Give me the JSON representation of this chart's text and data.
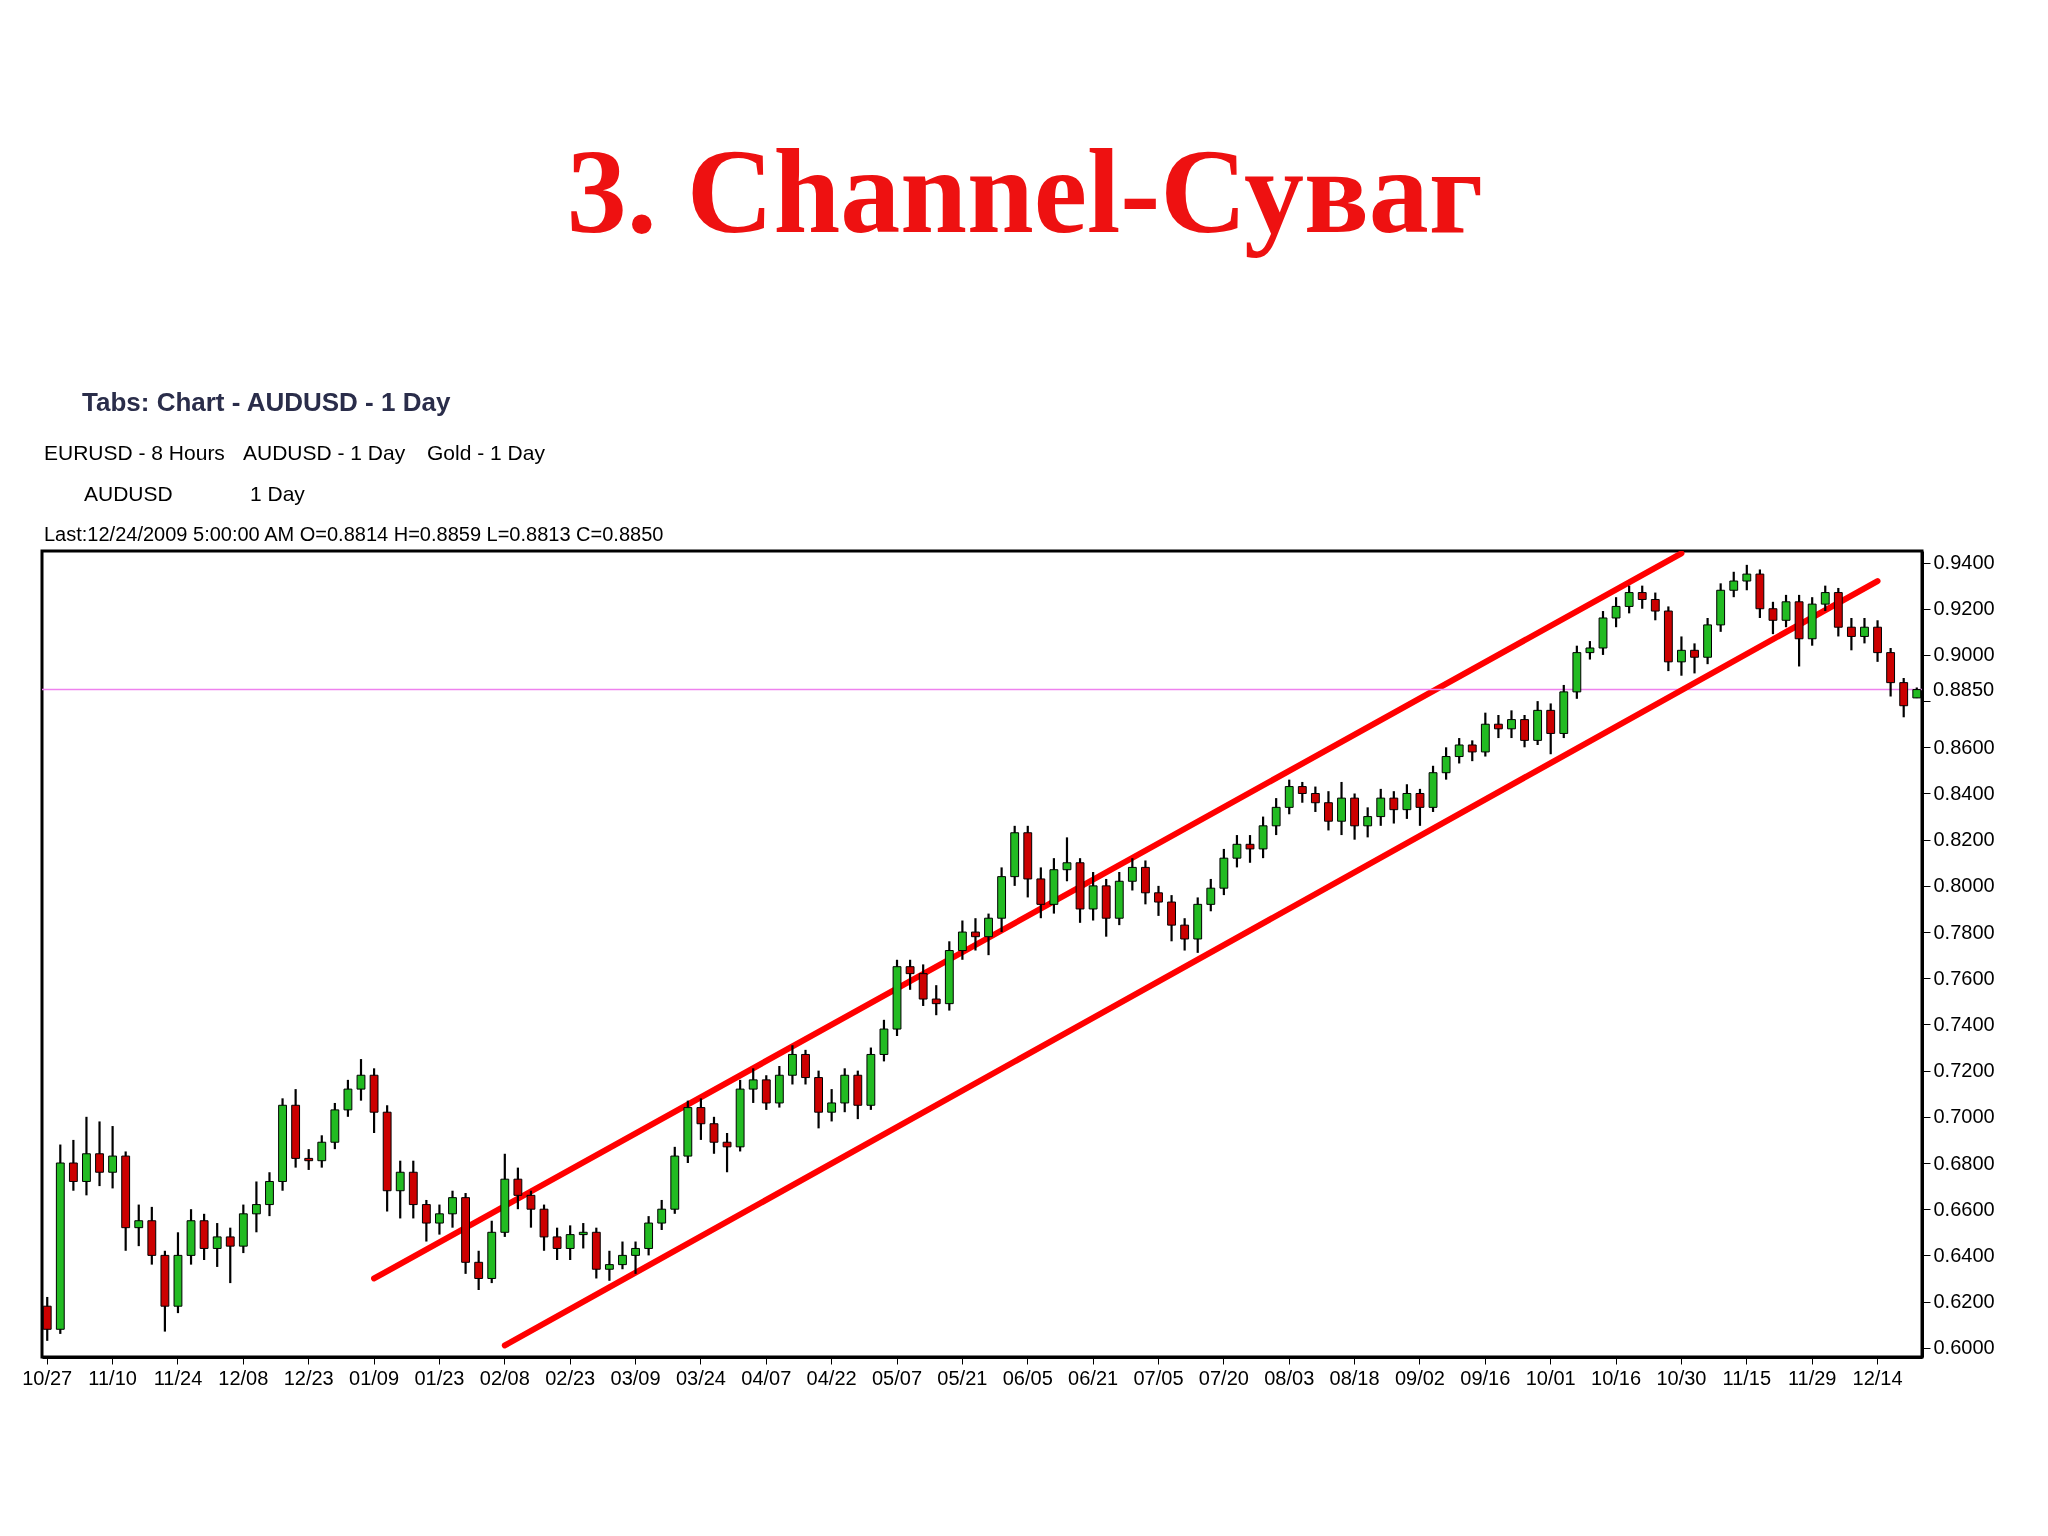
{
  "chart_data": {
    "type": "candlestick",
    "title": "3. Channel-Суваг",
    "subtitle": "Tabs: Chart - AUDUSD - 1 Day",
    "annotations": [
      "EURUSD - 8 Hours",
      "AUDUSD - 1 Day",
      "Gold - 1 Day",
      "AUDUSD",
      "1 Day",
      "Last:12/24/2009 5:00:00 AM O=0.8814 H=0.8859 L=0.8813 C=0.8850"
    ],
    "categories": [
      "10/27",
      null,
      null,
      null,
      null,
      "11/10",
      null,
      null,
      null,
      null,
      "11/24",
      null,
      null,
      null,
      null,
      "12/08",
      null,
      null,
      null,
      null,
      "12/23",
      null,
      null,
      null,
      null,
      "01/09",
      null,
      null,
      null,
      null,
      "01/23",
      null,
      null,
      null,
      null,
      "02/08",
      null,
      null,
      null,
      null,
      "02/23",
      null,
      null,
      null,
      null,
      "03/09",
      null,
      null,
      null,
      null,
      "03/24",
      null,
      null,
      null,
      null,
      "04/07",
      null,
      null,
      null,
      null,
      "04/22",
      null,
      null,
      null,
      null,
      "05/07",
      null,
      null,
      null,
      null,
      "05/21",
      null,
      null,
      null,
      null,
      "06/05",
      null,
      null,
      null,
      null,
      "06/21",
      null,
      null,
      null,
      null,
      "07/05",
      null,
      null,
      null,
      null,
      "07/20",
      null,
      null,
      null,
      null,
      "08/03",
      null,
      null,
      null,
      null,
      "08/18",
      null,
      null,
      null,
      null,
      "09/02",
      null,
      null,
      null,
      null,
      "09/16",
      null,
      null,
      null,
      null,
      "10/01",
      null,
      null,
      null,
      null,
      "10/16",
      null,
      null,
      null,
      null,
      "10/30",
      null,
      null,
      null,
      null,
      "11/15",
      null,
      null,
      null,
      null,
      "11/29",
      null,
      null,
      null,
      null,
      "12/14",
      null,
      null,
      null
    ],
    "ohlc": [
      [
        0.618,
        0.622,
        0.603,
        0.608
      ],
      [
        0.608,
        0.688,
        0.606,
        0.68
      ],
      [
        0.68,
        0.69,
        0.668,
        0.672
      ],
      [
        0.672,
        0.7,
        0.666,
        0.684
      ],
      [
        0.684,
        0.698,
        0.67,
        0.676
      ],
      [
        0.676,
        0.696,
        0.669,
        0.683
      ],
      [
        0.683,
        0.685,
        0.642,
        0.652
      ],
      [
        0.652,
        0.662,
        0.644,
        0.655
      ],
      [
        0.655,
        0.661,
        0.636,
        0.64
      ],
      [
        0.64,
        0.642,
        0.607,
        0.618
      ],
      [
        0.618,
        0.65,
        0.615,
        0.64
      ],
      [
        0.64,
        0.66,
        0.636,
        0.655
      ],
      [
        0.655,
        0.658,
        0.638,
        0.643
      ],
      [
        0.643,
        0.654,
        0.635,
        0.648
      ],
      [
        0.648,
        0.652,
        0.628,
        0.644
      ],
      [
        0.644,
        0.662,
        0.641,
        0.658
      ],
      [
        0.658,
        0.672,
        0.65,
        0.662
      ],
      [
        0.662,
        0.676,
        0.657,
        0.672
      ],
      [
        0.672,
        0.708,
        0.668,
        0.705
      ],
      [
        0.705,
        0.712,
        0.678,
        0.682
      ],
      [
        0.682,
        0.686,
        0.677,
        0.681
      ],
      [
        0.681,
        0.692,
        0.678,
        0.689
      ],
      [
        0.689,
        0.706,
        0.686,
        0.703
      ],
      [
        0.703,
        0.716,
        0.7,
        0.712
      ],
      [
        0.712,
        0.725,
        0.707,
        0.718
      ],
      [
        0.718,
        0.721,
        0.693,
        0.702
      ],
      [
        0.702,
        0.705,
        0.659,
        0.668
      ],
      [
        0.668,
        0.681,
        0.656,
        0.676
      ],
      [
        0.676,
        0.681,
        0.656,
        0.662
      ],
      [
        0.662,
        0.664,
        0.646,
        0.654
      ],
      [
        0.654,
        0.662,
        0.649,
        0.658
      ],
      [
        0.658,
        0.668,
        0.652,
        0.665
      ],
      [
        0.665,
        0.667,
        0.632,
        0.637
      ],
      [
        0.637,
        0.642,
        0.625,
        0.63
      ],
      [
        0.63,
        0.655,
        0.628,
        0.65
      ],
      [
        0.65,
        0.684,
        0.648,
        0.673
      ],
      [
        0.673,
        0.678,
        0.66,
        0.666
      ],
      [
        0.666,
        0.668,
        0.652,
        0.66
      ],
      [
        0.66,
        0.662,
        0.642,
        0.648
      ],
      [
        0.648,
        0.652,
        0.638,
        0.643
      ],
      [
        0.643,
        0.653,
        0.638,
        0.649
      ],
      [
        0.649,
        0.654,
        0.643,
        0.65
      ],
      [
        0.65,
        0.652,
        0.63,
        0.634
      ],
      [
        0.634,
        0.642,
        0.629,
        0.636
      ],
      [
        0.636,
        0.646,
        0.634,
        0.64
      ],
      [
        0.64,
        0.646,
        0.632,
        0.643
      ],
      [
        0.643,
        0.657,
        0.64,
        0.654
      ],
      [
        0.654,
        0.664,
        0.651,
        0.66
      ],
      [
        0.66,
        0.687,
        0.658,
        0.683
      ],
      [
        0.683,
        0.707,
        0.68,
        0.704
      ],
      [
        0.704,
        0.708,
        0.69,
        0.697
      ],
      [
        0.697,
        0.7,
        0.684,
        0.689
      ],
      [
        0.689,
        0.693,
        0.676,
        0.687
      ],
      [
        0.687,
        0.716,
        0.685,
        0.712
      ],
      [
        0.712,
        0.721,
        0.706,
        0.716
      ],
      [
        0.716,
        0.718,
        0.703,
        0.706
      ],
      [
        0.706,
        0.722,
        0.704,
        0.718
      ],
      [
        0.718,
        0.731,
        0.714,
        0.727
      ],
      [
        0.727,
        0.729,
        0.714,
        0.717
      ],
      [
        0.717,
        0.72,
        0.695,
        0.702
      ],
      [
        0.702,
        0.712,
        0.698,
        0.706
      ],
      [
        0.706,
        0.721,
        0.702,
        0.718
      ],
      [
        0.718,
        0.72,
        0.699,
        0.705
      ],
      [
        0.705,
        0.73,
        0.703,
        0.727
      ],
      [
        0.727,
        0.742,
        0.724,
        0.738
      ],
      [
        0.738,
        0.768,
        0.735,
        0.765
      ],
      [
        0.765,
        0.768,
        0.755,
        0.762
      ],
      [
        0.762,
        0.766,
        0.748,
        0.751
      ],
      [
        0.751,
        0.757,
        0.744,
        0.749
      ],
      [
        0.749,
        0.776,
        0.746,
        0.772
      ],
      [
        0.772,
        0.785,
        0.768,
        0.78
      ],
      [
        0.78,
        0.786,
        0.772,
        0.778
      ],
      [
        0.778,
        0.788,
        0.77,
        0.786
      ],
      [
        0.786,
        0.808,
        0.78,
        0.804
      ],
      [
        0.804,
        0.826,
        0.8,
        0.823
      ],
      [
        0.823,
        0.826,
        0.795,
        0.803
      ],
      [
        0.803,
        0.808,
        0.786,
        0.792
      ],
      [
        0.792,
        0.812,
        0.788,
        0.807
      ],
      [
        0.807,
        0.821,
        0.802,
        0.81
      ],
      [
        0.81,
        0.812,
        0.784,
        0.79
      ],
      [
        0.79,
        0.806,
        0.785,
        0.8
      ],
      [
        0.8,
        0.803,
        0.778,
        0.786
      ],
      [
        0.786,
        0.806,
        0.783,
        0.802
      ],
      [
        0.802,
        0.812,
        0.798,
        0.808
      ],
      [
        0.808,
        0.811,
        0.792,
        0.797
      ],
      [
        0.797,
        0.8,
        0.787,
        0.793
      ],
      [
        0.793,
        0.796,
        0.776,
        0.783
      ],
      [
        0.783,
        0.786,
        0.772,
        0.777
      ],
      [
        0.777,
        0.795,
        0.771,
        0.792
      ],
      [
        0.792,
        0.803,
        0.789,
        0.799
      ],
      [
        0.799,
        0.816,
        0.796,
        0.812
      ],
      [
        0.812,
        0.822,
        0.808,
        0.818
      ],
      [
        0.818,
        0.822,
        0.81,
        0.816
      ],
      [
        0.816,
        0.83,
        0.812,
        0.826
      ],
      [
        0.826,
        0.838,
        0.822,
        0.834
      ],
      [
        0.834,
        0.846,
        0.831,
        0.843
      ],
      [
        0.843,
        0.845,
        0.836,
        0.84
      ],
      [
        0.84,
        0.843,
        0.832,
        0.836
      ],
      [
        0.836,
        0.841,
        0.824,
        0.828
      ],
      [
        0.828,
        0.845,
        0.822,
        0.838
      ],
      [
        0.838,
        0.84,
        0.82,
        0.826
      ],
      [
        0.826,
        0.834,
        0.821,
        0.83
      ],
      [
        0.83,
        0.842,
        0.826,
        0.838
      ],
      [
        0.838,
        0.841,
        0.827,
        0.833
      ],
      [
        0.833,
        0.844,
        0.829,
        0.84
      ],
      [
        0.84,
        0.842,
        0.826,
        0.834
      ],
      [
        0.834,
        0.852,
        0.832,
        0.849
      ],
      [
        0.849,
        0.86,
        0.846,
        0.856
      ],
      [
        0.856,
        0.864,
        0.853,
        0.861
      ],
      [
        0.861,
        0.863,
        0.854,
        0.858
      ],
      [
        0.858,
        0.875,
        0.856,
        0.87
      ],
      [
        0.87,
        0.874,
        0.864,
        0.868
      ],
      [
        0.868,
        0.876,
        0.864,
        0.872
      ],
      [
        0.872,
        0.874,
        0.86,
        0.863
      ],
      [
        0.863,
        0.88,
        0.861,
        0.876
      ],
      [
        0.876,
        0.879,
        0.857,
        0.866
      ],
      [
        0.866,
        0.887,
        0.864,
        0.884
      ],
      [
        0.884,
        0.904,
        0.881,
        0.901
      ],
      [
        0.901,
        0.906,
        0.898,
        0.903
      ],
      [
        0.903,
        0.919,
        0.9,
        0.916
      ],
      [
        0.916,
        0.925,
        0.912,
        0.921
      ],
      [
        0.921,
        0.93,
        0.918,
        0.927
      ],
      [
        0.927,
        0.93,
        0.92,
        0.924
      ],
      [
        0.924,
        0.927,
        0.915,
        0.919
      ],
      [
        0.919,
        0.921,
        0.893,
        0.897
      ],
      [
        0.897,
        0.908,
        0.891,
        0.902
      ],
      [
        0.902,
        0.905,
        0.892,
        0.899
      ],
      [
        0.899,
        0.916,
        0.896,
        0.913
      ],
      [
        0.913,
        0.931,
        0.91,
        0.928
      ],
      [
        0.928,
        0.936,
        0.925,
        0.932
      ],
      [
        0.932,
        0.939,
        0.928,
        0.935
      ],
      [
        0.935,
        0.937,
        0.916,
        0.92
      ],
      [
        0.92,
        0.923,
        0.909,
        0.915
      ],
      [
        0.915,
        0.926,
        0.912,
        0.923
      ],
      [
        0.923,
        0.926,
        0.895,
        0.907
      ],
      [
        0.907,
        0.925,
        0.904,
        0.922
      ],
      [
        0.922,
        0.93,
        0.919,
        0.927
      ],
      [
        0.927,
        0.929,
        0.908,
        0.912
      ],
      [
        0.912,
        0.916,
        0.902,
        0.908
      ],
      [
        0.908,
        0.916,
        0.905,
        0.912
      ],
      [
        0.912,
        0.915,
        0.897,
        0.901
      ],
      [
        0.901,
        0.903,
        0.882,
        0.888
      ],
      [
        0.888,
        0.89,
        0.873,
        0.878
      ],
      [
        0.8814,
        0.8859,
        0.8813,
        0.885
      ]
    ],
    "colors": [
      "#cc0000",
      "#22bb22",
      "#cc0000",
      "#22bb22",
      "#cc0000",
      "#22bb22",
      "#cc0000",
      "#22bb22",
      "#cc0000",
      "#cc0000",
      "#22bb22",
      "#22bb22",
      "#cc0000",
      "#22bb22",
      "#cc0000",
      "#22bb22",
      "#22bb22",
      "#22bb22",
      "#22bb22",
      "#cc0000",
      "#cc0000",
      "#22bb22",
      "#22bb22",
      "#22bb22",
      "#22bb22",
      "#cc0000",
      "#cc0000",
      "#22bb22",
      "#cc0000",
      "#cc0000",
      "#22bb22",
      "#22bb22",
      "#cc0000",
      "#cc0000",
      "#22bb22",
      "#22bb22",
      "#cc0000",
      "#cc0000",
      "#cc0000",
      "#cc0000",
      "#22bb22",
      "#22bb22",
      "#cc0000",
      "#22bb22",
      "#22bb22",
      "#22bb22",
      "#22bb22",
      "#22bb22",
      "#22bb22",
      "#22bb22",
      "#cc0000",
      "#cc0000",
      "#cc0000",
      "#22bb22",
      "#22bb22",
      "#cc0000",
      "#22bb22",
      "#22bb22",
      "#cc0000",
      "#cc0000",
      "#22bb22",
      "#22bb22",
      "#cc0000",
      "#22bb22",
      "#22bb22",
      "#22bb22",
      "#cc0000",
      "#cc0000",
      "#cc0000",
      "#22bb22",
      "#22bb22",
      "#cc0000",
      "#22bb22",
      "#22bb22",
      "#22bb22",
      "#cc0000",
      "#cc0000",
      "#22bb22",
      "#22bb22",
      "#cc0000",
      "#22bb22",
      "#cc0000",
      "#22bb22",
      "#22bb22",
      "#cc0000",
      "#cc0000",
      "#cc0000",
      "#cc0000",
      "#22bb22",
      "#22bb22",
      "#22bb22",
      "#22bb22",
      "#cc0000",
      "#22bb22",
      "#22bb22",
      "#22bb22",
      "#cc0000",
      "#cc0000",
      "#cc0000",
      "#22bb22",
      "#cc0000",
      "#22bb22",
      "#22bb22",
      "#cc0000",
      "#22bb22",
      "#cc0000",
      "#22bb22",
      "#22bb22",
      "#22bb22",
      "#cc0000",
      "#22bb22",
      "#cc0000",
      "#22bb22",
      "#cc0000",
      "#22bb22",
      "#cc0000",
      "#22bb22",
      "#22bb22",
      "#22bb22",
      "#22bb22",
      "#22bb22",
      "#22bb22",
      "#cc0000",
      "#cc0000",
      "#cc0000",
      "#22bb22",
      "#cc0000",
      "#22bb22",
      "#22bb22",
      "#22bb22",
      "#22bb22",
      "#cc0000",
      "#cc0000",
      "#22bb22",
      "#cc0000",
      "#22bb22",
      "#22bb22",
      "#cc0000",
      "#cc0000",
      "#22bb22",
      "#cc0000",
      "#cc0000",
      "#cc0000",
      "#22bb22"
    ],
    "series": [
      {
        "type": "line",
        "color": "#ff0000",
        "x": [
          "01/09",
          "10/30"
        ],
        "values": [
          0.63,
          0.944
        ]
      },
      {
        "type": "line",
        "color": "#ff0000",
        "x": [
          "02/08",
          "12/14"
        ],
        "values": [
          0.601,
          0.932
        ]
      }
    ],
    "ylim": [
      0.596,
      0.945
    ],
    "yticks": [
      {
        "value": 0.6,
        "label": "0.6000"
      },
      {
        "value": 0.62,
        "label": "0.6200"
      },
      {
        "value": 0.64,
        "label": "0.6400"
      },
      {
        "value": 0.66,
        "label": "0.6600"
      },
      {
        "value": 0.68,
        "label": "0.6800"
      },
      {
        "value": 0.7,
        "label": "0.7000"
      },
      {
        "value": 0.72,
        "label": "0.7200"
      },
      {
        "value": 0.74,
        "label": "0.7400"
      },
      {
        "value": 0.76,
        "label": "0.7600"
      },
      {
        "value": 0.78,
        "label": "0.7800"
      },
      {
        "value": 0.8,
        "label": "0.8000"
      },
      {
        "value": 0.82,
        "label": "0.8200"
      },
      {
        "value": 0.84,
        "label": "0.8400"
      },
      {
        "value": 0.86,
        "label": "0.8600"
      },
      {
        "value": 0.88,
        "label": null
      },
      {
        "value": 0.9,
        "label": "0.9000"
      },
      {
        "value": 0.92,
        "label": "0.9200"
      },
      {
        "value": 0.94,
        "label": "0.9400"
      }
    ],
    "ref_lines": [
      {
        "axis": "y",
        "value": 0.885,
        "label": "0.8850",
        "color": "#ee82ee"
      }
    ]
  }
}
